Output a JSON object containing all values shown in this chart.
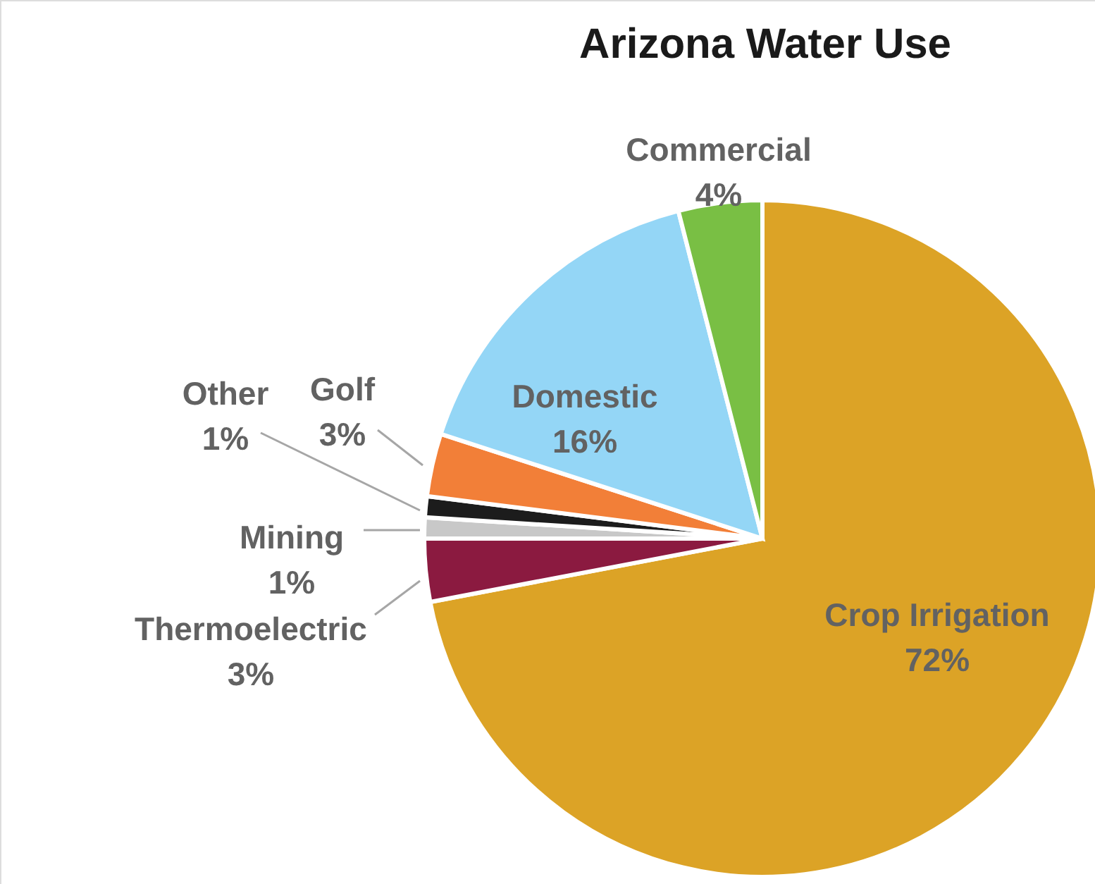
{
  "chart_data": {
    "type": "pie",
    "title": "Arizona Water Use",
    "categories": [
      "Crop Irrigation",
      "Thermoelectric",
      "Mining",
      "Other",
      "Golf",
      "Domestic",
      "Commercial"
    ],
    "values": [
      72,
      3,
      1,
      1,
      3,
      16,
      4
    ],
    "value_labels": [
      "72%",
      "3%",
      "1%",
      "1%",
      "3%",
      "16%",
      "4%"
    ],
    "colors": [
      "#dca326",
      "#8b1a40",
      "#c8c8c8",
      "#1c1c1c",
      "#f27f38",
      "#94d6f6",
      "#79bf44"
    ]
  }
}
